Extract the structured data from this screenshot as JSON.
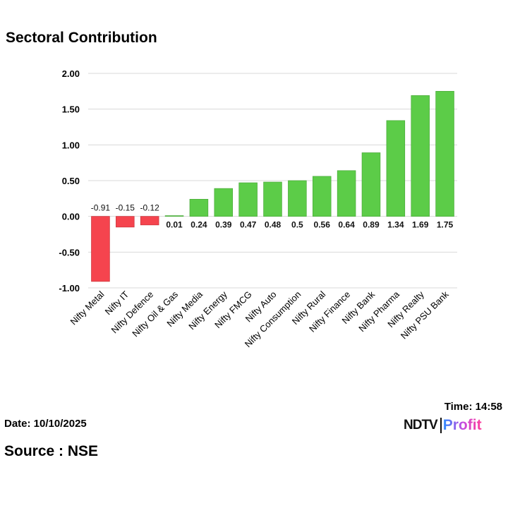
{
  "header": {
    "title": "Sectoral Contribution"
  },
  "footer": {
    "date": "Date: 10/10/2025",
    "time": "Time: 14:58",
    "source": "Source : NSE",
    "logo_text": "NDTV Profit"
  },
  "colors": {
    "positive": "#5ccc48",
    "negative": "#f5444e",
    "grid": "#d9d9d9"
  },
  "chart_data": {
    "type": "bar",
    "title": "Sectoral Contribution",
    "categories": [
      "Nifty Metal",
      "Nifty IT",
      "Nifty Defence",
      "Nifty Oil & Gas",
      "Nifty Media",
      "Nifty Energy",
      "Nifty FMCG",
      "Nifty Auto",
      "Nifty Consumption",
      "Nifty Rural",
      "Nifty Finance",
      "Nifty Bank",
      "Nifty Pharma",
      "Nifty Realty",
      "Nifty PSU Bank"
    ],
    "values": [
      -0.91,
      -0.15,
      -0.12,
      0.01,
      0.24,
      0.39,
      0.47,
      0.48,
      0.5,
      0.56,
      0.64,
      0.89,
      1.34,
      1.69,
      1.75
    ],
    "data_labels": [
      "-0.91",
      "-0.15",
      "-0.12",
      "0.01",
      "0.24",
      "0.39",
      "0.47",
      "0.48",
      "0.5",
      "0.56",
      "0.64",
      "0.89",
      "1.34",
      "1.69",
      "1.75"
    ],
    "yticks": [
      "2.00",
      "1.50",
      "1.00",
      "0.50",
      "0.00",
      "-0.50",
      "-1.00"
    ],
    "ylim": [
      -1,
      2
    ],
    "grid": true,
    "legend": "none"
  }
}
